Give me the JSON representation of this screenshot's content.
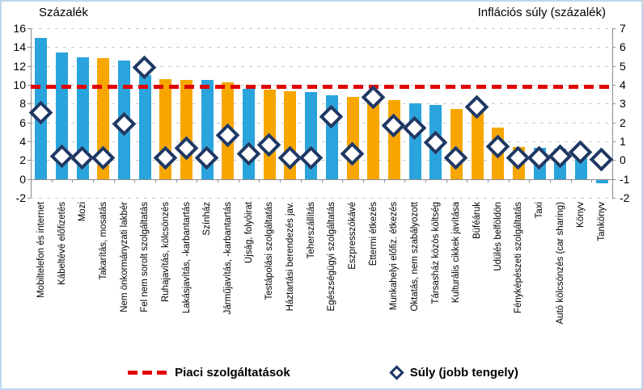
{
  "titles": {
    "left_axis_title": "Százalék",
    "right_axis_title": "Inflációs súly (százalék)"
  },
  "colors": {
    "bar_blue": "#29A4DC",
    "bar_orange": "#F7A600",
    "diamond_navy": "#1F3864",
    "reference_red": "#E00000",
    "gridline_gray": "#C8C8C8",
    "axis_gray": "#8C8C8C",
    "frame_border": "#BDD7EE"
  },
  "legend": {
    "reference_label": "Piaci szolgáltatások",
    "weight_label": "Súly (jobb tengely)"
  },
  "chart_data": {
    "type": "bar",
    "title": "",
    "xlabel": "",
    "ylabel_left": "Százalék",
    "ylabel_right": "Inflációs súly (százalék)",
    "left_axis": {
      "min": -2,
      "max": 16,
      "step": 2,
      "ticks": [
        16,
        14,
        12,
        10,
        8,
        6,
        4,
        2,
        0,
        -2
      ]
    },
    "right_axis": {
      "min": -2,
      "max": 7,
      "step": 1,
      "ticks": [
        7,
        6,
        5,
        4,
        3,
        2,
        1,
        0,
        -1,
        -2
      ]
    },
    "grid": "horizontal-dashed",
    "legend_position": "bottom",
    "categories": [
      "Mobiltelefon és internet",
      "Kábeltévé előfizetés",
      "Mozi",
      "Takarítás, mosatás",
      "Nem önkormányzati lakbér",
      "Fel nem sorolt szolgáltatás",
      "Ruhajavítás, kölcsönzés",
      "Lakásjavítás, -karbantartás",
      "Színház",
      "Járműjavítás, -karbantartás",
      "Újság, folyóirat",
      "Testápolási szolgáltatás",
      "Háztartási berendezés jav.",
      "Teherszállítás",
      "Egészségügyi szolgáltatás",
      "Eszpresszókávé",
      "Éttermi étkezés",
      "Munkahelyi előfiz. étkezés",
      "Oktatás, nem szabályozott",
      "Társasház közös költség",
      "Kulturális cikkek javítása",
      "Büféáruk",
      "Üdülés belföldön",
      "Fényképészeti szolgáltatás",
      "Taxi",
      "Autó kölcsönzés (car sharing)",
      "Könyv",
      "Tankönyv"
    ],
    "series": [
      {
        "name": "Százalék (bal tengely)",
        "type": "bar",
        "axis": "left",
        "values": [
          15.0,
          13.4,
          12.9,
          12.8,
          12.6,
          11.0,
          10.6,
          10.5,
          10.5,
          10.3,
          9.6,
          9.5,
          9.3,
          9.2,
          8.9,
          8.7,
          8.6,
          8.4,
          8.0,
          7.9,
          7.4,
          7.2,
          5.5,
          3.4,
          3.3,
          3.2,
          3.1,
          -0.4
        ],
        "bar_colors": [
          "blue",
          "blue",
          "blue",
          "orange",
          "blue",
          "blue",
          "orange",
          "orange",
          "blue",
          "orange",
          "blue",
          "orange",
          "orange",
          "blue",
          "blue",
          "orange",
          "orange",
          "orange",
          "blue",
          "blue",
          "orange",
          "orange",
          "orange",
          "orange",
          "blue",
          "blue",
          "blue",
          "blue"
        ]
      },
      {
        "name": "Súly (jobb tengely)",
        "type": "scatter-diamond",
        "axis": "right",
        "values": [
          2.5,
          0.2,
          0.1,
          0.1,
          1.9,
          4.9,
          0.1,
          0.6,
          0.1,
          1.3,
          0.3,
          0.8,
          0.1,
          0.1,
          2.3,
          0.3,
          3.3,
          1.8,
          1.7,
          0.9,
          0.1,
          2.8,
          0.7,
          0.1,
          0.1,
          0.2,
          0.4,
          0.0
        ]
      },
      {
        "name": "Piaci szolgáltatások",
        "type": "reference-line",
        "axis": "left",
        "value": 9.8
      }
    ]
  }
}
